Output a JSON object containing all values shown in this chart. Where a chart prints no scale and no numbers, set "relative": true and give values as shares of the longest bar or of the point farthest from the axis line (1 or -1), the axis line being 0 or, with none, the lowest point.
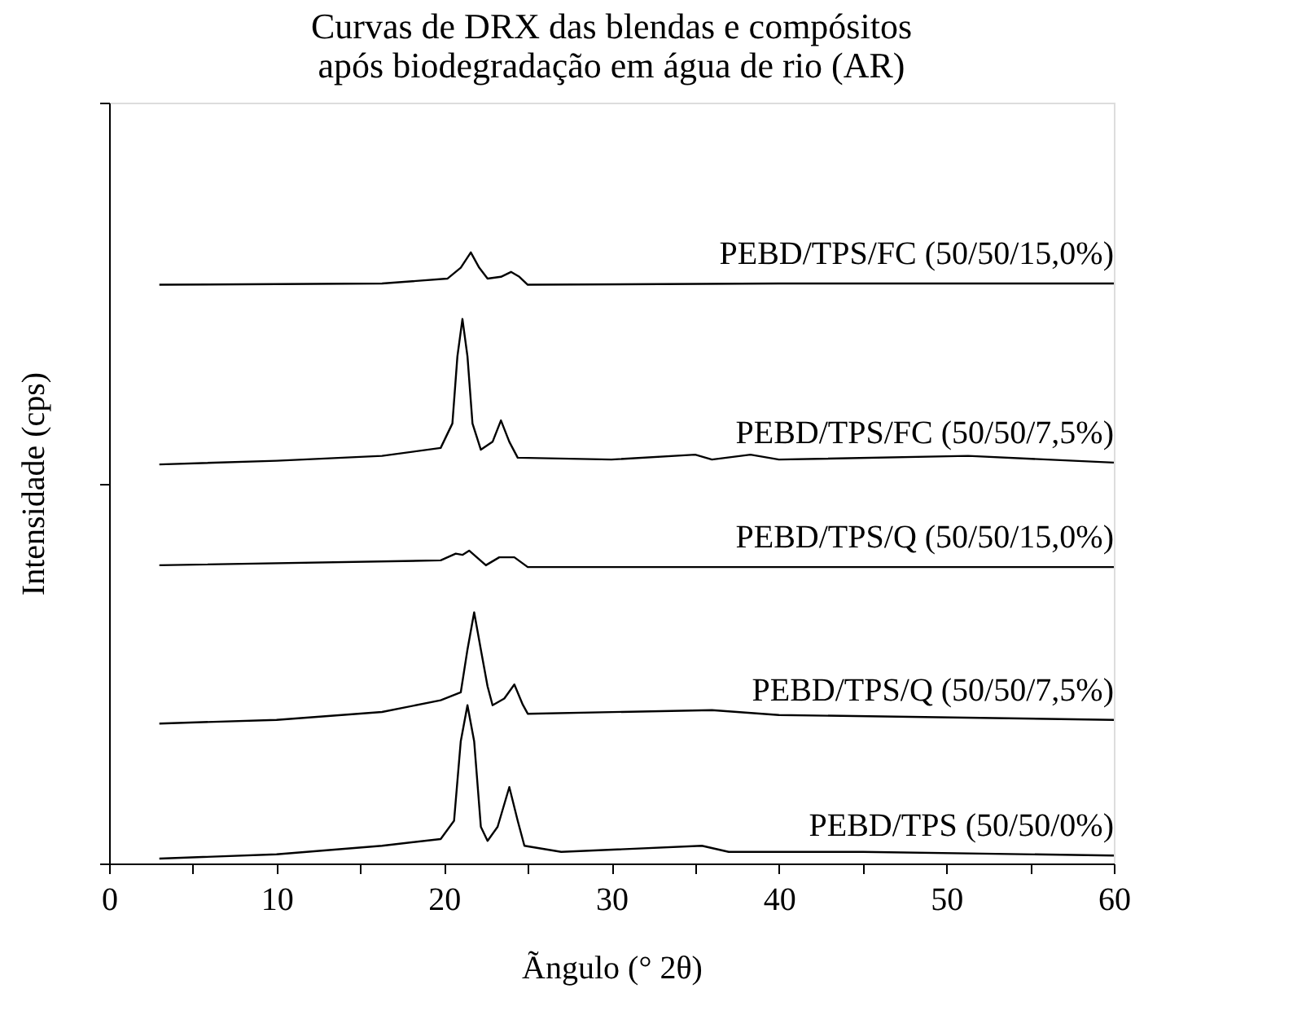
{
  "chart_data": {
    "type": "line",
    "relative": true,
    "title": "Curvas de DRX das blendas e compósitos\napós biodegradação em água de rio (AR)",
    "xlabel": "Ãngulo (° 2θ)",
    "ylabel": "Intensidade (cps)",
    "xlim": [
      0,
      60
    ],
    "xticks": [
      0,
      {
        "value": 5,
        "label": null
      },
      10,
      {
        "value": 15,
        "label": null
      },
      20,
      {
        "value": 25,
        "label": null
      },
      30,
      {
        "value": 35,
        "label": null
      },
      40,
      {
        "value": 45,
        "label": null
      },
      50,
      {
        "value": 55,
        "label": null
      },
      60
    ],
    "tick_labels": "x",
    "grid": false,
    "legend": false,
    "marker": "none",
    "line_style": "solid",
    "series": [
      {
        "name": "PEBD/TPS (50/50/0%)",
        "color": "#000000",
        "x": [
          3,
          10,
          16.3,
          19.8,
          20.6,
          21.0,
          21.4,
          21.8,
          22.2,
          22.6,
          23.2,
          23.9,
          24.4,
          24.8,
          27,
          35.4,
          37,
          45,
          60
        ],
        "values": [
          0.008,
          0.015,
          0.029,
          0.04,
          0.07,
          0.2,
          0.259,
          0.2,
          0.06,
          0.037,
          0.06,
          0.125,
          0.07,
          0.029,
          0.019,
          0.029,
          0.019,
          0.019,
          0.013
        ]
      },
      {
        "name": "PEBD/TPS/Q (50/50/7,5%)",
        "color": "#000000",
        "x": [
          3,
          10,
          16.3,
          19.8,
          21.0,
          21.4,
          21.8,
          22.2,
          22.6,
          22.9,
          23.6,
          24.2,
          24.7,
          25,
          36,
          40,
          60
        ],
        "values": [
          0.229,
          0.235,
          0.248,
          0.267,
          0.28,
          0.35,
          0.411,
          0.35,
          0.29,
          0.259,
          0.27,
          0.293,
          0.26,
          0.245,
          0.251,
          0.243,
          0.235
        ]
      },
      {
        "name": "PEBD/TPS/Q (50/50/15,0%)",
        "color": "#000000",
        "x": [
          3,
          19.8,
          20.7,
          21.1,
          21.5,
          22.5,
          23.3,
          24.2,
          25,
          60
        ],
        "values": [
          0.488,
          0.496,
          0.507,
          0.505,
          0.512,
          0.488,
          0.501,
          0.501,
          0.485,
          0.485
        ]
      },
      {
        "name": "PEBD/TPS/FC (50/50/7,5%)",
        "color": "#000000",
        "x": [
          3,
          10,
          16.3,
          19.8,
          20.5,
          20.8,
          21.1,
          21.4,
          21.7,
          22.2,
          22.9,
          23.4,
          23.9,
          24.4,
          30,
          35,
          36,
          38.3,
          40,
          51.3,
          60
        ],
        "values": [
          0.653,
          0.659,
          0.667,
          0.68,
          0.72,
          0.83,
          0.891,
          0.83,
          0.72,
          0.677,
          0.69,
          0.725,
          0.69,
          0.664,
          0.661,
          0.669,
          0.661,
          0.669,
          0.661,
          0.667,
          0.656
        ]
      },
      {
        "name": "PEBD/TPS/FC (50/50/15,0%)",
        "color": "#000000",
        "x": [
          3,
          16.3,
          20.2,
          21.0,
          21.6,
          22.1,
          22.6,
          23.4,
          24.0,
          24.5,
          25,
          40,
          60
        ],
        "values": [
          0.947,
          0.949,
          0.957,
          0.975,
          1.0,
          0.975,
          0.957,
          0.96,
          0.968,
          0.96,
          0.947,
          0.949,
          0.949
        ]
      }
    ]
  }
}
